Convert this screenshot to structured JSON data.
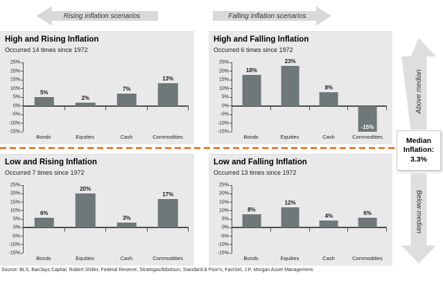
{
  "header": {
    "rising_arrow_label": "Rising inflation scenarios",
    "falling_arrow_label": "Falling inflation scenarios"
  },
  "sidebar": {
    "above_median_label": "Above median",
    "below_median_label": "Below median",
    "median_box_text": "Median\nInflation:\n3.3%"
  },
  "footer": {
    "source": "Source: BLS, Barclays Capital, Robert Shiller, Federal Reserve, Strategas/Ibbotson, Standard & Poor's, FactSet, J.P. Morgan Asset Management."
  },
  "colors": {
    "bar": "#6E7878",
    "panel_bg": "#E9E9E9",
    "arrow_gray": "#D9D9D9",
    "divider_orange": "#ED7D31",
    "axis": "#4D4D4D",
    "positive_value_label": "#15171C",
    "negative_value_label": "#FFFFFF"
  },
  "chart_data": [
    {
      "type": "bar",
      "title": "High and Rising Inflation",
      "subtitle": "Occurred 14 times since 1972",
      "categories": [
        "Bonds",
        "Equities",
        "Cash",
        "Commodities"
      ],
      "values": [
        5,
        2,
        7,
        13
      ],
      "value_labels": [
        "5%",
        "2%",
        "7%",
        "13%"
      ],
      "ylim": [
        -15,
        25
      ],
      "ytick_step": 5,
      "ytick_suffix": "%",
      "grid": false,
      "legend": false
    },
    {
      "type": "bar",
      "title": "High and Falling Inflation",
      "subtitle": "Occurred 6 times since 1972",
      "categories": [
        "Bonds",
        "Equities",
        "Cash",
        "Commodities"
      ],
      "values": [
        18,
        23,
        8,
        -15
      ],
      "value_labels": [
        "18%",
        "23%",
        "8%",
        "-15%"
      ],
      "ylim": [
        -15,
        25
      ],
      "ytick_step": 5,
      "ytick_suffix": "%",
      "grid": false,
      "legend": false
    },
    {
      "type": "bar",
      "title": "Low and Rising Inflation",
      "subtitle": "Occurred 7 times since 1972",
      "categories": [
        "Bonds",
        "Equities",
        "Cash",
        "Commodities"
      ],
      "values": [
        6,
        20,
        3,
        17
      ],
      "value_labels": [
        "6%",
        "20%",
        "3%",
        "17%"
      ],
      "ylim": [
        -15,
        25
      ],
      "ytick_step": 5,
      "ytick_suffix": "%",
      "grid": false,
      "legend": false
    },
    {
      "type": "bar",
      "title": "Low and Falling Inflation",
      "subtitle": "Occurred 13 times since 1972",
      "categories": [
        "Bonds",
        "Equities",
        "Cash",
        "Commodities"
      ],
      "values": [
        8,
        12,
        4,
        6
      ],
      "value_labels": [
        "8%",
        "12%",
        "4%",
        "6%"
      ],
      "ylim": [
        -15,
        25
      ],
      "ytick_step": 5,
      "ytick_suffix": "%",
      "grid": false,
      "legend": false
    }
  ]
}
